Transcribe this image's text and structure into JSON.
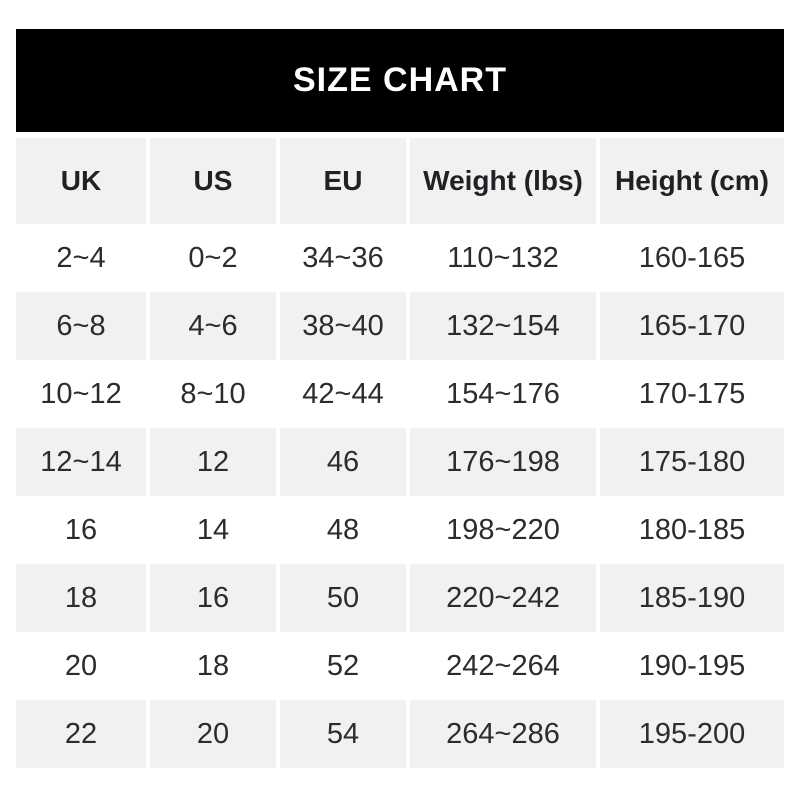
{
  "title": "SIZE CHART",
  "colors": {
    "banner_bg": "#000000",
    "banner_text": "#ffffff",
    "shaded_cell_bg": "#f1f1f1",
    "plain_row_bg": "#ffffff",
    "header_text": "#1f2124",
    "data_text": "#2b2c2e"
  },
  "table": {
    "columns": [
      "UK",
      "US",
      "EU",
      "Weight (lbs)",
      "Height (cm)"
    ],
    "rows": [
      [
        "2~4",
        "0~2",
        "34~36",
        "110~132",
        "160-165"
      ],
      [
        "6~8",
        "4~6",
        "38~40",
        "132~154",
        "165-170"
      ],
      [
        "10~12",
        "8~10",
        "42~44",
        "154~176",
        "170-175"
      ],
      [
        "12~14",
        "12",
        "46",
        "176~198",
        "175-180"
      ],
      [
        "16",
        "14",
        "48",
        "198~220",
        "180-185"
      ],
      [
        "18",
        "16",
        "50",
        "220~242",
        "185-190"
      ],
      [
        "20",
        "18",
        "52",
        "242~264",
        "190-195"
      ],
      [
        "22",
        "20",
        "54",
        "264~286",
        "195-200"
      ]
    ]
  },
  "chart_data": {
    "type": "table",
    "title": "SIZE CHART",
    "columns": [
      "UK",
      "US",
      "EU",
      "Weight (lbs)",
      "Height (cm)"
    ],
    "rows": [
      [
        "2~4",
        "0~2",
        "34~36",
        "110~132",
        "160-165"
      ],
      [
        "6~8",
        "4~6",
        "38~40",
        "132~154",
        "165-170"
      ],
      [
        "10~12",
        "8~10",
        "42~44",
        "154~176",
        "170-175"
      ],
      [
        "12~14",
        "12",
        "46",
        "176~198",
        "175-180"
      ],
      [
        "16",
        "14",
        "48",
        "198~220",
        "180-185"
      ],
      [
        "18",
        "16",
        "50",
        "220~242",
        "185-190"
      ],
      [
        "20",
        "18",
        "52",
        "242~264",
        "190-195"
      ],
      [
        "22",
        "20",
        "54",
        "264~286",
        "195-200"
      ]
    ],
    "layout_hints": {
      "alternating_rows": true,
      "shaded_row_indices": [
        1,
        3,
        5,
        7
      ],
      "column_separators": "white 4px gaps",
      "range_separator_sizes_weight": "~",
      "range_separator_height": "-"
    }
  }
}
